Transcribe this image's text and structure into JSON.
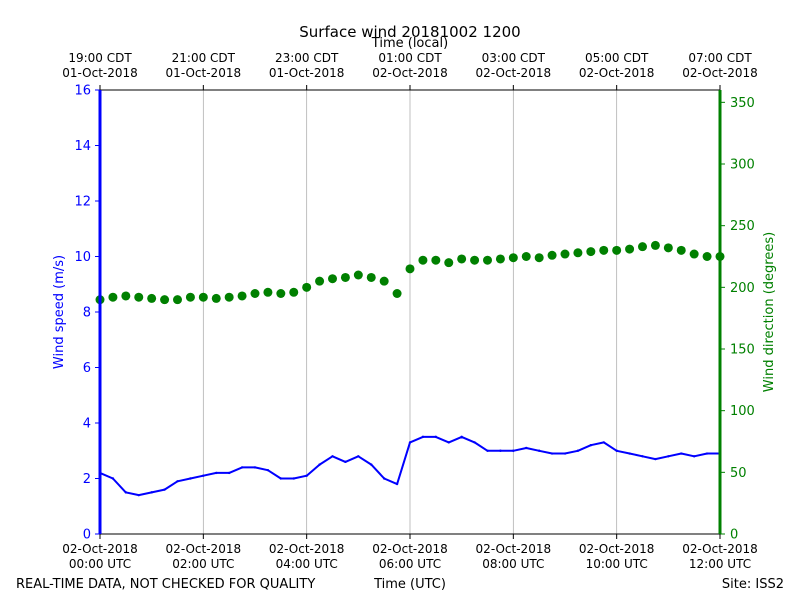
{
  "chart_data": {
    "type": "scatter",
    "title": "Surface wind 20181002 1200",
    "top_axis_label": "Time (local)",
    "top_ticks": [
      {
        "h": 0,
        "line1": "19:00 CDT",
        "line2": "01-Oct-2018"
      },
      {
        "h": 2,
        "line1": "21:00 CDT",
        "line2": "01-Oct-2018"
      },
      {
        "h": 4,
        "line1": "23:00 CDT",
        "line2": "01-Oct-2018"
      },
      {
        "h": 6,
        "line1": "01:00 CDT",
        "line2": "02-Oct-2018"
      },
      {
        "h": 8,
        "line1": "03:00 CDT",
        "line2": "02-Oct-2018"
      },
      {
        "h": 10,
        "line1": "05:00 CDT",
        "line2": "02-Oct-2018"
      },
      {
        "h": 12,
        "line1": "07:00 CDT",
        "line2": "02-Oct-2018"
      }
    ],
    "bottom_ticks": [
      {
        "h": 0,
        "line1": "02-Oct-2018",
        "line2": "00:00 UTC"
      },
      {
        "h": 2,
        "line1": "02-Oct-2018",
        "line2": "02:00 UTC"
      },
      {
        "h": 4,
        "line1": "02-Oct-2018",
        "line2": "04:00 UTC"
      },
      {
        "h": 6,
        "line1": "02-Oct-2018",
        "line2": "06:00 UTC"
      },
      {
        "h": 8,
        "line1": "02-Oct-2018",
        "line2": "08:00 UTC"
      },
      {
        "h": 10,
        "line1": "02-Oct-2018",
        "line2": "10:00 UTC"
      },
      {
        "h": 12,
        "line1": "02-Oct-2018",
        "line2": "12:00 UTC"
      }
    ],
    "xlabel": "Time (UTC)",
    "xlim": [
      0,
      12
    ],
    "left_axis": {
      "label": "Wind speed (m/s)",
      "ylim": [
        0,
        16
      ],
      "ticks": [
        0,
        2,
        4,
        6,
        8,
        10,
        12,
        14,
        16
      ],
      "color": "#0000ff"
    },
    "right_axis": {
      "label": "Wind direction (degrees)",
      "ylim": [
        0,
        360
      ],
      "ticks": [
        0,
        50,
        100,
        150,
        200,
        250,
        300,
        350
      ],
      "color": "#008000"
    },
    "grid": "vertical-only",
    "series": [
      {
        "name": "Wind speed",
        "axis": "left",
        "kind": "line",
        "color": "#0000ff",
        "x_hours": [
          0.0,
          0.25,
          0.5,
          0.75,
          1.0,
          1.25,
          1.5,
          1.75,
          2.0,
          2.25,
          2.5,
          2.75,
          3.0,
          3.25,
          3.5,
          3.75,
          4.0,
          4.25,
          4.5,
          4.75,
          5.0,
          5.25,
          5.5,
          5.75,
          6.0,
          6.25,
          6.5,
          6.75,
          7.0,
          7.25,
          7.5,
          7.75,
          8.0,
          8.25,
          8.5,
          8.75,
          9.0,
          9.25,
          9.5,
          9.75,
          10.0,
          10.25,
          10.5,
          10.75,
          11.0,
          11.25,
          11.5,
          11.75,
          12.0
        ],
        "y": [
          2.2,
          2.0,
          1.5,
          1.4,
          1.5,
          1.6,
          1.9,
          2.0,
          2.1,
          2.2,
          2.2,
          2.4,
          2.4,
          2.3,
          2.0,
          2.0,
          2.1,
          2.5,
          2.8,
          2.6,
          2.8,
          2.5,
          2.0,
          1.8,
          3.3,
          3.5,
          3.5,
          3.3,
          3.5,
          3.3,
          3.0,
          3.0,
          3.0,
          3.1,
          3.0,
          2.9,
          2.9,
          3.0,
          3.2,
          3.3,
          3.0,
          2.9,
          2.8,
          2.7,
          2.8,
          2.9,
          2.8,
          2.9,
          2.9
        ]
      },
      {
        "name": "Wind direction",
        "axis": "right",
        "kind": "scatter",
        "color": "#008000",
        "x_hours": [
          0.0,
          0.25,
          0.5,
          0.75,
          1.0,
          1.25,
          1.5,
          1.75,
          2.0,
          2.25,
          2.5,
          2.75,
          3.0,
          3.25,
          3.5,
          3.75,
          4.0,
          4.25,
          4.5,
          4.75,
          5.0,
          5.25,
          5.5,
          5.75,
          6.0,
          6.25,
          6.5,
          6.75,
          7.0,
          7.25,
          7.5,
          7.75,
          8.0,
          8.25,
          8.5,
          8.75,
          9.0,
          9.25,
          9.5,
          9.75,
          10.0,
          10.25,
          10.5,
          10.75,
          11.0,
          11.25,
          11.5,
          11.75,
          12.0
        ],
        "y": [
          190,
          192,
          193,
          192,
          191,
          190,
          190,
          192,
          192,
          191,
          192,
          193,
          195,
          196,
          195,
          196,
          200,
          205,
          207,
          208,
          210,
          208,
          205,
          195,
          215,
          222,
          222,
          220,
          223,
          222,
          222,
          223,
          224,
          225,
          224,
          226,
          227,
          228,
          229,
          230,
          230,
          231,
          233,
          234,
          232,
          230,
          227,
          225,
          225
        ]
      }
    ],
    "footer_left": "REAL-TIME DATA, NOT CHECKED FOR QUALITY",
    "footer_right": "Site: ISS2"
  }
}
